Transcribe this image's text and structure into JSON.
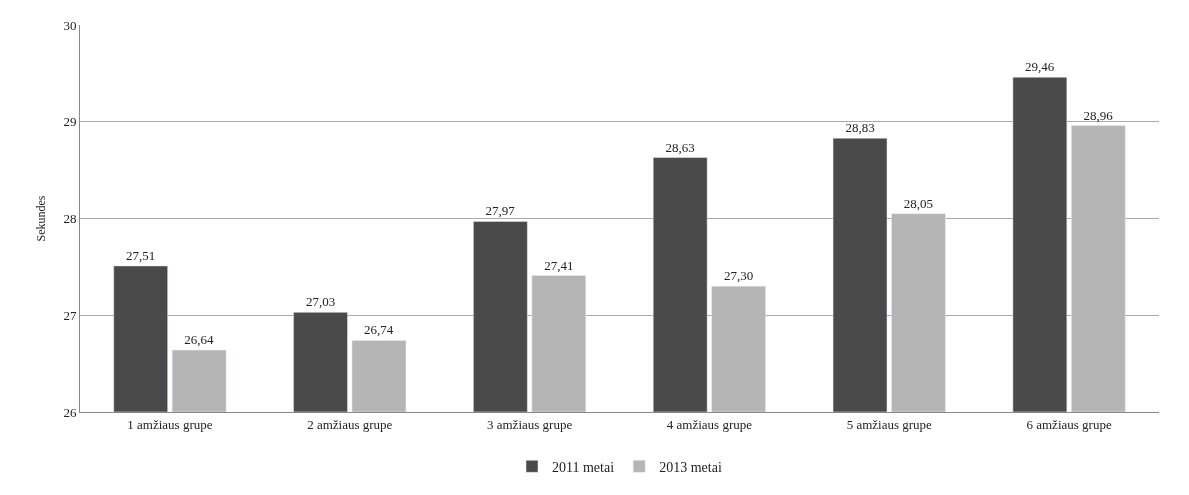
{
  "chart_data": {
    "type": "bar",
    "ylabel": "Sekundes",
    "categories": [
      "1 amžiaus grupe",
      "2 amžiaus grupe",
      "3 amžiaus grupe",
      "4 amžiaus grupe",
      "5 amžiaus grupe",
      "6 amžiaus grupe"
    ],
    "series": [
      {
        "name": "2011 metai",
        "color": "#4a4a4a",
        "values": [
          27.51,
          27.03,
          27.97,
          28.63,
          28.83,
          29.46
        ],
        "value_labels": [
          "27,51",
          "27,03",
          "27,97",
          "28,63",
          "28,83",
          "29,46"
        ]
      },
      {
        "name": "2013 metai",
        "color": "#b5b5b5",
        "values": [
          26.64,
          26.74,
          27.41,
          27.3,
          28.05,
          28.96
        ],
        "value_labels": [
          "26,64",
          "26,74",
          "27,41",
          "27,30",
          "28,05",
          "28,96"
        ]
      }
    ],
    "ylim": [
      26,
      30
    ],
    "yticks": [
      26,
      27,
      28,
      29,
      30
    ],
    "grid": "y",
    "legend": "bottom"
  }
}
